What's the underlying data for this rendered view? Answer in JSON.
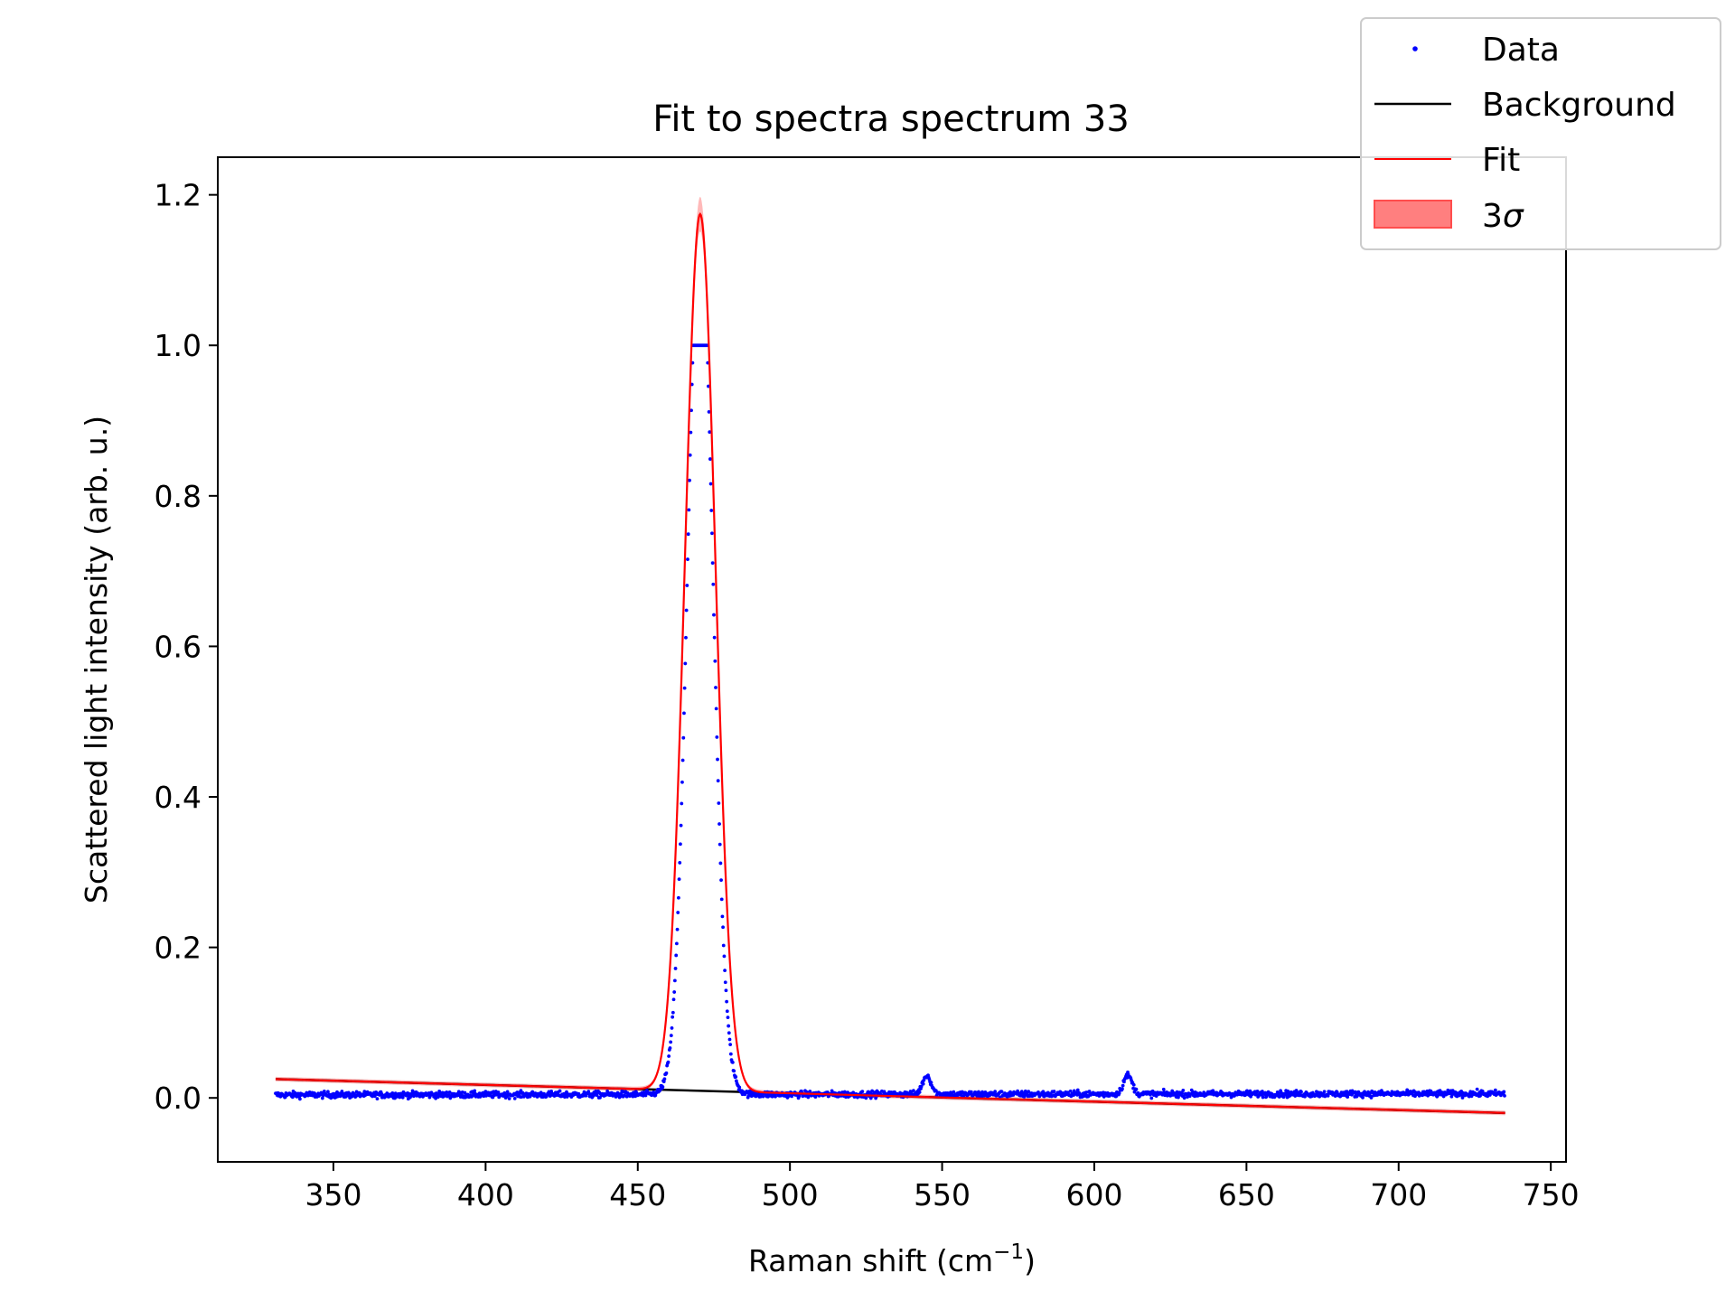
{
  "chart_data": {
    "type": "scatter",
    "title": "Fit to spectra spectrum 33",
    "xlabel": "Raman shift (cm",
    "xlabel_sup": "−1",
    "xlabel_end": ")",
    "ylabel": "Scattered light intensity (arb. u.)",
    "xlim": [
      312,
      755
    ],
    "ylim": [
      -0.085,
      1.25
    ],
    "x_ticks": [
      350,
      400,
      450,
      500,
      550,
      600,
      650,
      700,
      750
    ],
    "y_ticks": [
      0.0,
      0.2,
      0.4,
      0.6,
      0.8,
      1.0,
      1.2
    ],
    "y_tick_labels": [
      "0.0",
      "0.2",
      "0.4",
      "0.6",
      "0.8",
      "1.0",
      "1.2"
    ],
    "x_range": [
      331,
      735
    ],
    "legend": {
      "placement": "top-right (outside axes)",
      "entries": [
        {
          "label": "Data",
          "kind": "marker",
          "color": "#0000ff"
        },
        {
          "label": "Background",
          "kind": "line",
          "color": "#000000"
        },
        {
          "label": "Fit",
          "kind": "line",
          "color": "#ff0000"
        },
        {
          "label": "3",
          "label_sigma": "σ",
          "kind": "patch",
          "color": "#ff7f7f"
        }
      ]
    },
    "series": [
      {
        "name": "Data",
        "style": "points",
        "color": "#0000ff",
        "peak_center": 470.5,
        "peak_sigma": 5.0,
        "peak_amplitude": 1.17,
        "saturation": 1.0,
        "saturated_x_range": [
          464.5,
          477
        ],
        "minor_peaks": [
          {
            "x": 545,
            "y": 0.025
          },
          {
            "x": 611,
            "y": 0.025
          }
        ]
      },
      {
        "name": "Background",
        "style": "line",
        "color": "#000000",
        "x": [
          331,
          735
        ],
        "y": [
          0.025,
          -0.02
        ]
      },
      {
        "name": "Fit",
        "style": "line",
        "color": "#ff0000",
        "peak_center": 470.5,
        "peak_sigma": 5.0,
        "peak_amplitude": 1.165
      },
      {
        "name": "3σ",
        "style": "band",
        "color": "#ff7f7f",
        "band_halfwidth_peak": 0.02,
        "band_halfwidth_base": 0.003
      }
    ]
  }
}
